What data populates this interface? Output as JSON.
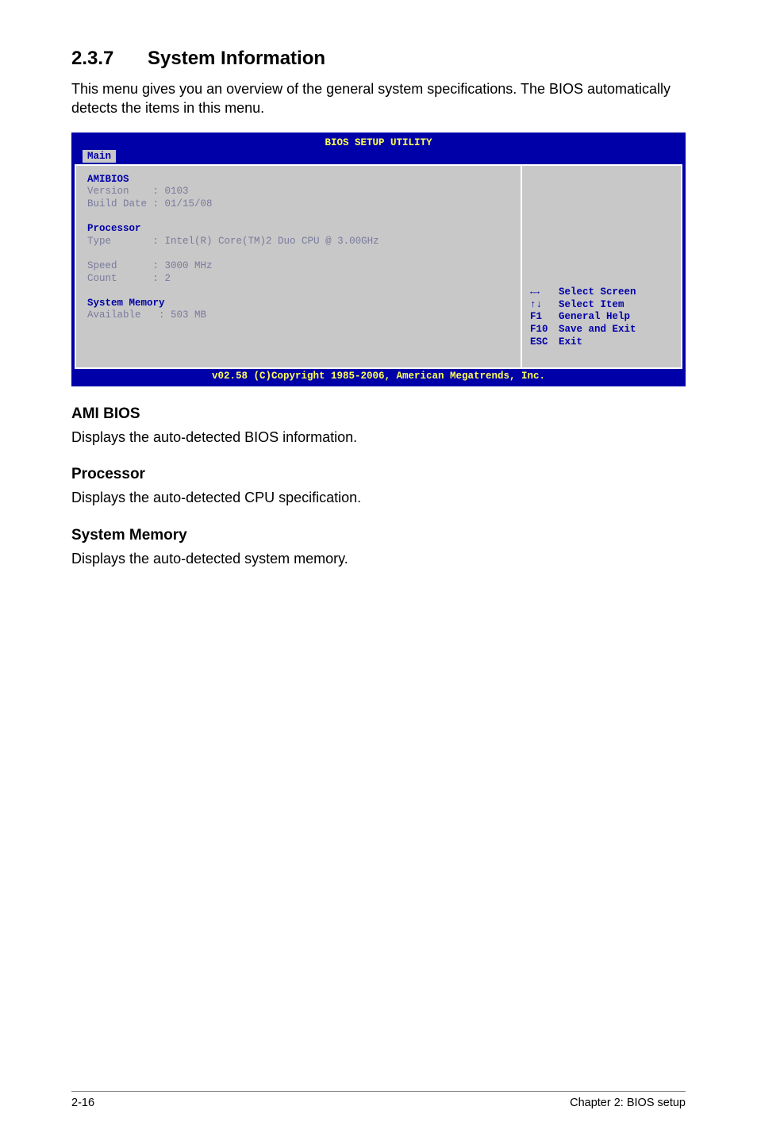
{
  "heading": {
    "num": "2.3.7",
    "title": "System Information"
  },
  "intro": "This menu gives you an overview of the general system specifications. The BIOS automatically detects the items in this menu.",
  "bios": {
    "title": "BIOS SETUP UTILITY",
    "tab": "Main",
    "colors": {
      "panel_bg": "#0000a8",
      "body_bg": "#c8c8c8",
      "accent": "#ffff55",
      "text": "#0000a8",
      "dim": "#7a7a9e",
      "border": "#ffffff"
    },
    "font": {
      "family": "Courier New",
      "size_pt": 9
    },
    "left": {
      "amibios_label": "AMIBIOS",
      "version_label": "Version",
      "version_value": "0103",
      "build_label": "Build Date",
      "build_value": "01/15/08",
      "processor_label": "Processor",
      "type_label": "Type",
      "type_value": "Intel(R) Core(TM)2 Duo CPU @ 3.00GHz",
      "speed_label": "Speed",
      "speed_value": "3000 MHz",
      "count_label": "Count",
      "count_value": "2",
      "sysmem_label": "System Memory",
      "avail_label": "Available",
      "avail_value": "503 MB"
    },
    "help": {
      "lr_icon": "←→",
      "lr_text": "Select Screen",
      "ud_icon": "↑↓",
      "ud_text": "Select Item",
      "f1": "F1",
      "f1_text": "General Help",
      "f10": "F10",
      "f10_text": "Save and Exit",
      "esc": "ESC",
      "esc_text": "Exit"
    },
    "footer": "v02.58 (C)Copyright 1985-2006, American Megatrends, Inc."
  },
  "sections": {
    "ami": {
      "h": "AMI BIOS",
      "p": "Displays the auto-detected BIOS information."
    },
    "proc": {
      "h": "Processor",
      "p": "Displays the auto-detected CPU specification."
    },
    "mem": {
      "h": "System Memory",
      "p": "Displays the auto-detected system memory."
    }
  },
  "footer": {
    "left": "2-16",
    "right": "Chapter 2: BIOS setup"
  }
}
